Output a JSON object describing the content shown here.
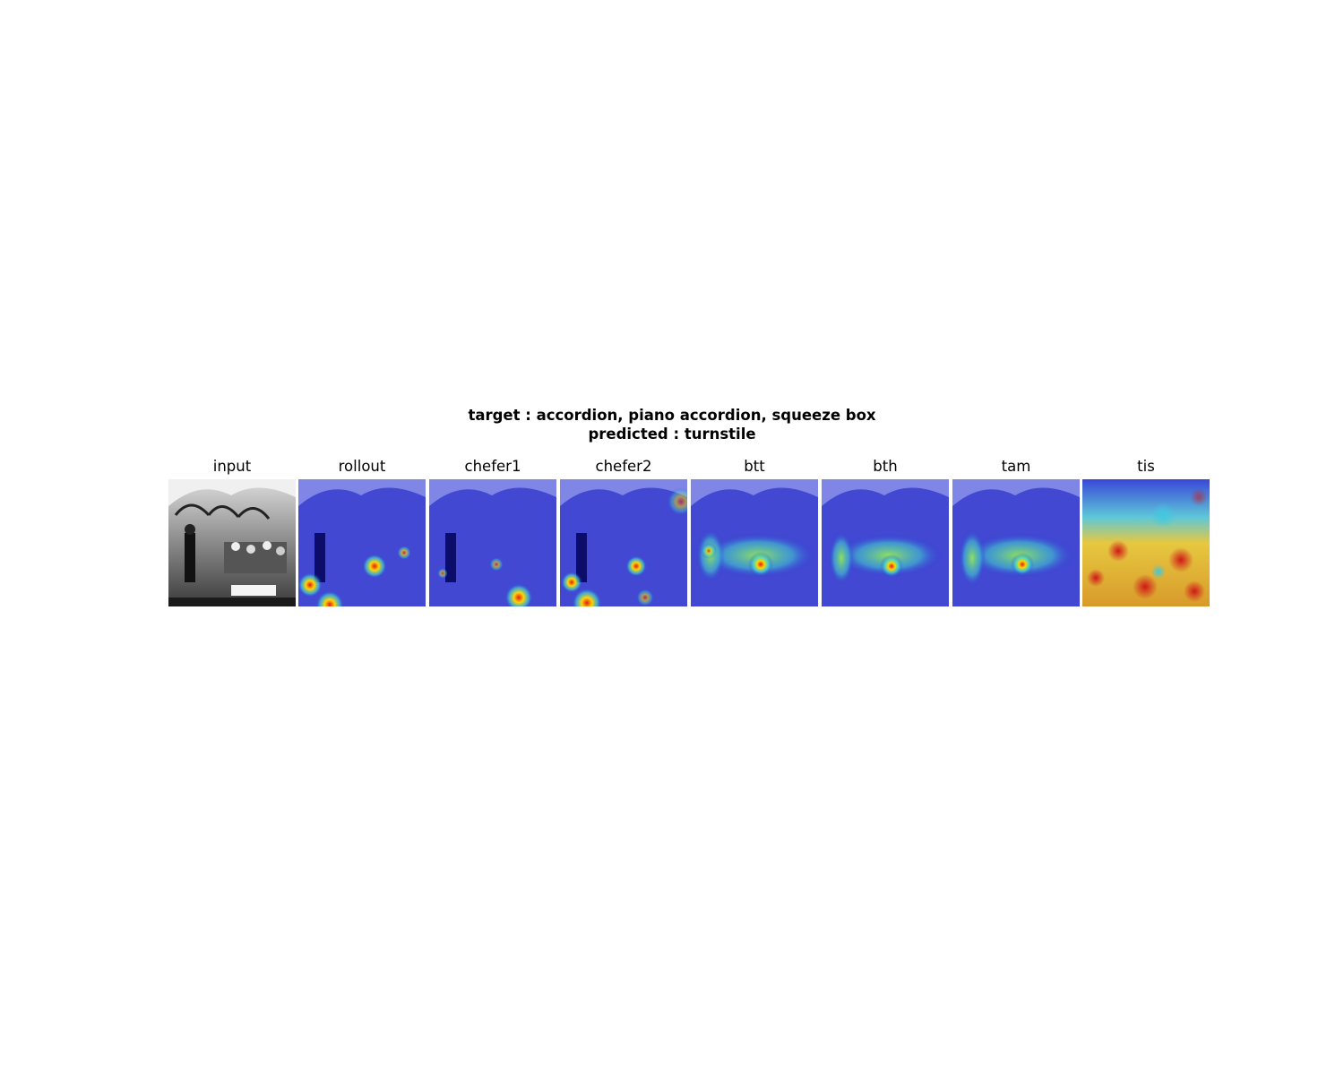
{
  "figure": {
    "title_line1": "target : accordion, piano accordion, squeeze box",
    "title_line2": "predicted : turnstile"
  },
  "panels": [
    {
      "label": "input",
      "overlay": "none"
    },
    {
      "label": "rollout",
      "overlay": "blue-sparse"
    },
    {
      "label": "chefer1",
      "overlay": "blue-sparse"
    },
    {
      "label": "chefer2",
      "overlay": "blue-sparse"
    },
    {
      "label": "btt",
      "overlay": "blue-green"
    },
    {
      "label": "bth",
      "overlay": "blue-green"
    },
    {
      "label": "tam",
      "overlay": "blue-green"
    },
    {
      "label": "tis",
      "overlay": "red-yellow-dense"
    }
  ],
  "colors": {
    "jet_low": "#1a1ae6",
    "jet_mid": "#40e0d0",
    "jet_high": "#ffd700",
    "jet_peak": "#e11b1b"
  }
}
